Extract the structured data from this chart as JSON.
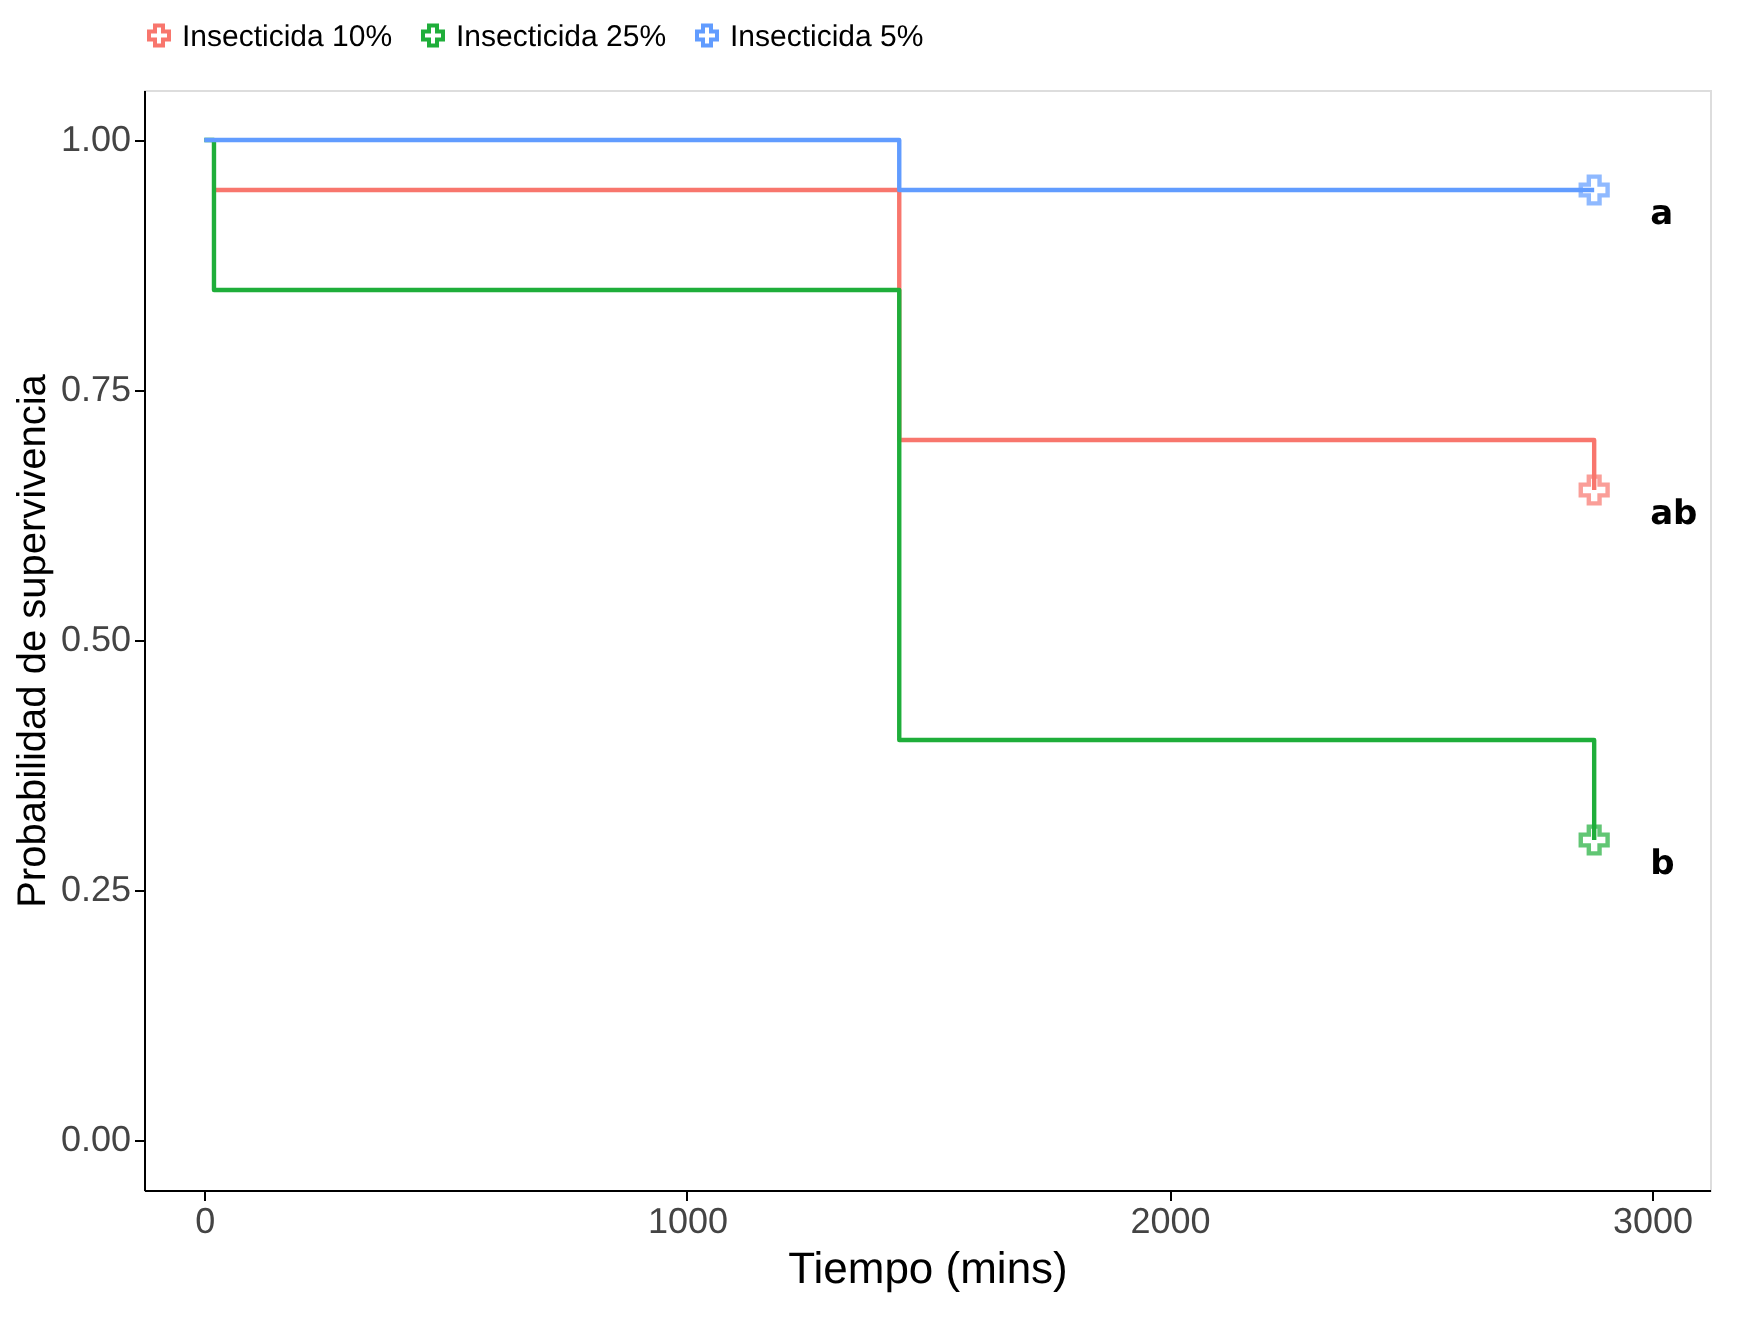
{
  "chart_data": {
    "type": "step",
    "xlabel": "Tiempo (mins)",
    "ylabel": "Probabilidad de supervivencia",
    "xlim": [
      -125,
      3120
    ],
    "ylim": [
      -0.05,
      1.05
    ],
    "xticks": [
      0,
      1000,
      2000,
      3000
    ],
    "yticks": [
      {
        "value": 0,
        "label": "0.00"
      },
      {
        "value": 0.25,
        "label": "0.25"
      },
      {
        "value": 0.5,
        "label": "0.50"
      },
      {
        "value": 0.75,
        "label": "0.75"
      },
      {
        "value": 1,
        "label": "1.00"
      }
    ],
    "grid": false,
    "legend": "top",
    "line_style": "solid",
    "series": [
      {
        "name": "Insecticida 10%",
        "color": "#f8766d",
        "x": [
          20,
          1440,
          2880
        ],
        "values": [
          0.95,
          0.7,
          0.65
        ]
      },
      {
        "name": "Insecticida 25%",
        "color": "#1fae3a",
        "x": [
          0,
          20,
          1440,
          2880
        ],
        "values": [
          1,
          0.85,
          0.4,
          0.3
        ]
      },
      {
        "name": "Insecticida 5%",
        "color": "#619cff",
        "x": [
          0,
          1440,
          2880
        ],
        "values": [
          1,
          0.95,
          0.95
        ]
      },
      {
        "type": "scatter",
        "marker": "cross",
        "color": "#f8766d",
        "x": [
          2880
        ],
        "values": [
          0.65
        ]
      },
      {
        "type": "scatter",
        "marker": "cross",
        "color": "#1fae3a",
        "x": [
          2880
        ],
        "values": [
          0.3
        ]
      },
      {
        "type": "scatter",
        "marker": "cross",
        "color": "#619cff",
        "x": [
          2880
        ],
        "values": [
          0.95
        ]
      }
    ],
    "annotations": [
      "a",
      "ab",
      "b"
    ]
  }
}
